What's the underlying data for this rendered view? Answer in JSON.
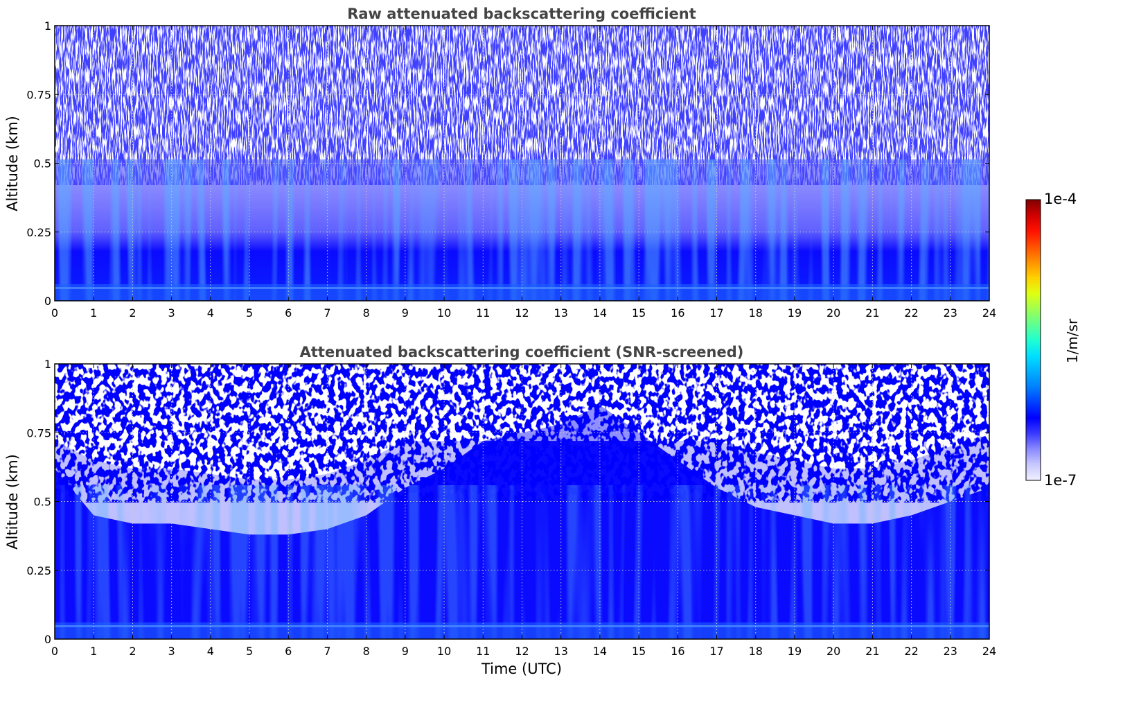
{
  "chart_data": [
    {
      "type": "heatmap",
      "title": "Raw attenuated backscattering coefficient",
      "xlabel": "",
      "ylabel": "Altitude (km)",
      "xlim": [
        0,
        24
      ],
      "ylim": [
        0,
        1
      ],
      "x_ticks": [
        "0",
        "1",
        "2",
        "3",
        "4",
        "5",
        "6",
        "7",
        "8",
        "9",
        "10",
        "11",
        "12",
        "13",
        "14",
        "15",
        "16",
        "17",
        "18",
        "19",
        "20",
        "21",
        "22",
        "23",
        "24"
      ],
      "y_ticks": [
        "0",
        "0.25",
        "0.5",
        "0.75",
        "1"
      ],
      "grid": true,
      "colormap": "jet-like (white-blue at low end)",
      "description": [
        {
          "altitude_km": [
            0.0,
            0.4
          ],
          "level": "dense blue, ~1e-6 to 3e-6 1/m/sr"
        },
        {
          "altitude_km": [
            0.4,
            1.0
          ],
          "level": "noisy, sparse blue mixed with white"
        }
      ]
    },
    {
      "type": "heatmap",
      "title": "Attenuated backscattering coefficient (SNR-screened)",
      "xlabel": "Time (UTC)",
      "ylabel": "Altitude (km)",
      "xlim": [
        0,
        24
      ],
      "ylim": [
        0,
        1
      ],
      "x_ticks": [
        "0",
        "1",
        "2",
        "3",
        "4",
        "5",
        "6",
        "7",
        "8",
        "9",
        "10",
        "11",
        "12",
        "13",
        "14",
        "15",
        "16",
        "17",
        "18",
        "19",
        "20",
        "21",
        "22",
        "23",
        "24"
      ],
      "y_ticks": [
        "0",
        "0.25",
        "0.5",
        "0.75",
        "1"
      ],
      "grid": true,
      "colormap": "jet-like (white-blue at low end)",
      "boundary_layer_top_km": {
        "time_utc": [
          0,
          1,
          2,
          3,
          4,
          5,
          6,
          7,
          8,
          9,
          10,
          11,
          12,
          13,
          14,
          15,
          16,
          17,
          18,
          19,
          20,
          21,
          22,
          23,
          24
        ],
        "top_km": [
          0.62,
          0.45,
          0.42,
          0.42,
          0.4,
          0.38,
          0.38,
          0.4,
          0.45,
          0.55,
          0.62,
          0.72,
          0.75,
          0.78,
          0.85,
          0.75,
          0.65,
          0.55,
          0.48,
          0.45,
          0.42,
          0.42,
          0.45,
          0.5,
          0.55
        ]
      }
    }
  ],
  "colorbar": {
    "max_label": "1e-4",
    "min_label": "1e-7",
    "unit": "1/m/sr",
    "scale": "log",
    "colors": [
      "#f0f0ff",
      "#c8c8ff",
      "#8a8aff",
      "#3a3aff",
      "#0000ff",
      "#0040ff",
      "#0080ff",
      "#00b0ff",
      "#00e0ff",
      "#20ffd0",
      "#60ff90",
      "#a0ff50",
      "#e0ff10",
      "#ffd000",
      "#ff9000",
      "#ff5000",
      "#ff1000",
      "#d00000",
      "#800000"
    ]
  }
}
